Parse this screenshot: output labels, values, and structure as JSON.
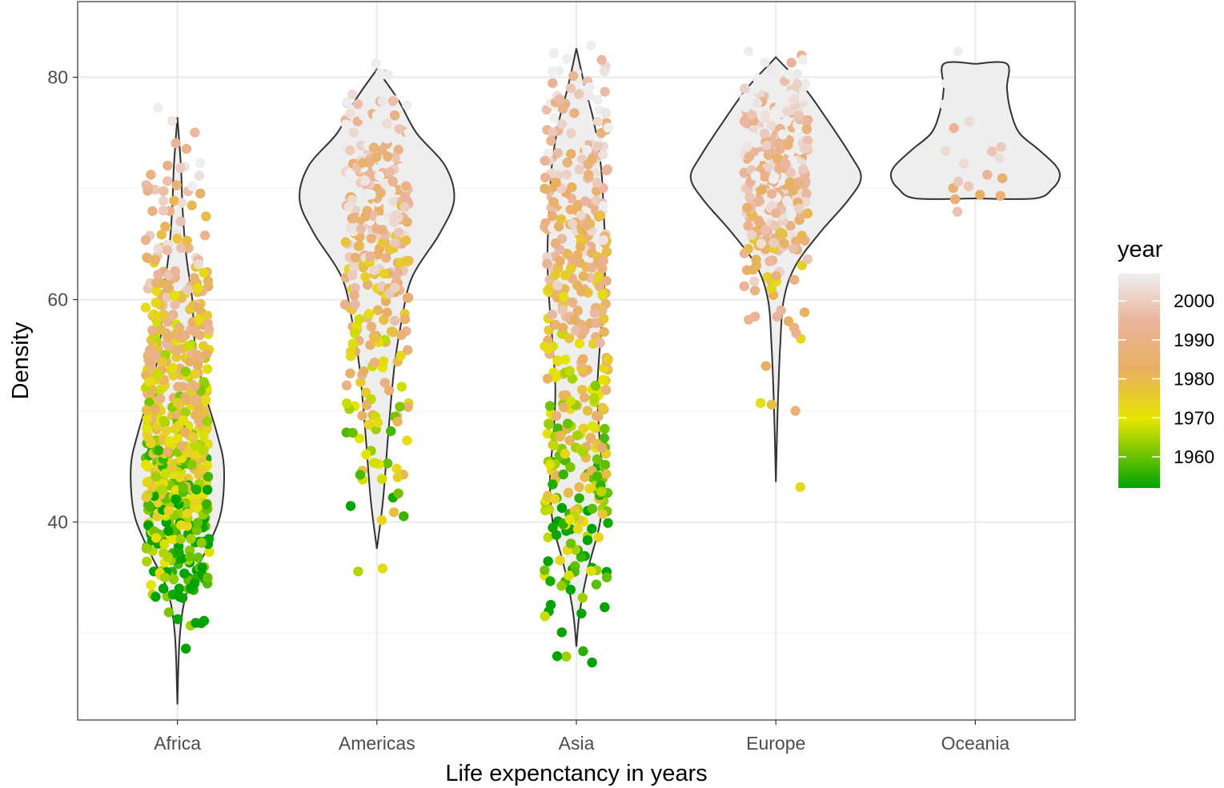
{
  "chart_data": {
    "type": "violin",
    "xlabel": "Life expenctancy in years",
    "ylabel": "Density",
    "categories": [
      "Africa",
      "Americas",
      "Asia",
      "Europe",
      "Oceania"
    ],
    "yticks": [
      40,
      60,
      80
    ],
    "ylim": [
      22.2,
      86.8
    ],
    "grid": true,
    "jitter_points": true,
    "legend": {
      "title": "year",
      "placement": "right",
      "labels": [
        2000,
        1990,
        1980,
        1970,
        1960
      ],
      "range": [
        1952,
        2007
      ],
      "colors": [
        "#00a300",
        "#e5e500",
        "#e8b060",
        "#eab49c",
        "#eeeeee"
      ]
    },
    "violins": [
      {
        "category": "Africa",
        "min": 23.6,
        "max": 76.4,
        "profile": [
          [
            23.6,
            0.0
          ],
          [
            30.0,
            0.03
          ],
          [
            34.0,
            0.12
          ],
          [
            38.0,
            0.36
          ],
          [
            41.0,
            0.5
          ],
          [
            45.0,
            0.53
          ],
          [
            48.0,
            0.45
          ],
          [
            52.0,
            0.3
          ],
          [
            56.0,
            0.2
          ],
          [
            60.0,
            0.17
          ],
          [
            64.0,
            0.1
          ],
          [
            68.0,
            0.06
          ],
          [
            72.0,
            0.04
          ],
          [
            76.4,
            0.0
          ]
        ]
      },
      {
        "category": "Americas",
        "min": 37.6,
        "max": 80.7,
        "profile": [
          [
            37.6,
            0.0
          ],
          [
            42.0,
            0.07
          ],
          [
            48.0,
            0.13
          ],
          [
            54.0,
            0.2
          ],
          [
            58.0,
            0.28
          ],
          [
            62.0,
            0.4
          ],
          [
            66.0,
            0.72
          ],
          [
            69.0,
            0.88
          ],
          [
            72.0,
            0.78
          ],
          [
            75.0,
            0.45
          ],
          [
            78.0,
            0.24
          ],
          [
            80.7,
            0.0
          ]
        ]
      },
      {
        "category": "Asia",
        "min": 28.8,
        "max": 82.6,
        "profile": [
          [
            28.8,
            0.0
          ],
          [
            32.0,
            0.04
          ],
          [
            36.0,
            0.14
          ],
          [
            40.0,
            0.27
          ],
          [
            44.0,
            0.3
          ],
          [
            48.0,
            0.26
          ],
          [
            52.0,
            0.24
          ],
          [
            56.0,
            0.27
          ],
          [
            60.0,
            0.31
          ],
          [
            64.0,
            0.33
          ],
          [
            68.0,
            0.31
          ],
          [
            72.0,
            0.28
          ],
          [
            76.0,
            0.2
          ],
          [
            79.0,
            0.1
          ],
          [
            82.6,
            0.0
          ]
        ]
      },
      {
        "category": "Europe",
        "min": 43.6,
        "max": 81.8,
        "profile": [
          [
            43.6,
            0.0
          ],
          [
            50.0,
            0.02
          ],
          [
            56.0,
            0.05
          ],
          [
            60.0,
            0.09
          ],
          [
            63.0,
            0.22
          ],
          [
            66.0,
            0.5
          ],
          [
            69.0,
            0.83
          ],
          [
            71.0,
            0.97
          ],
          [
            73.0,
            0.85
          ],
          [
            76.0,
            0.6
          ],
          [
            79.0,
            0.33
          ],
          [
            81.8,
            0.0
          ]
        ]
      },
      {
        "category": "Oceania",
        "min": 69.1,
        "max": 81.2,
        "profile": [
          [
            69.1,
            0.0
          ],
          [
            69.1,
            0.68
          ],
          [
            70.0,
            0.88
          ],
          [
            71.0,
            0.96
          ],
          [
            72.0,
            0.92
          ],
          [
            73.5,
            0.72
          ],
          [
            75.0,
            0.5
          ],
          [
            77.0,
            0.4
          ],
          [
            79.0,
            0.36
          ],
          [
            81.2,
            0.36
          ],
          [
            81.2,
            0.0
          ]
        ]
      }
    ],
    "point_density": [
      {
        "category": "Africa",
        "bands": [
          [
            24,
            0
          ],
          [
            28,
            1
          ],
          [
            32,
            14
          ],
          [
            36,
            48
          ],
          [
            40,
            90
          ],
          [
            44,
            96
          ],
          [
            48,
            90
          ],
          [
            52,
            80
          ],
          [
            56,
            64
          ],
          [
            60,
            52
          ],
          [
            64,
            30
          ],
          [
            68,
            16
          ],
          [
            72,
            12
          ],
          [
            76,
            4
          ]
        ]
      },
      {
        "category": "Americas",
        "bands": [
          [
            36,
            2
          ],
          [
            40,
            4
          ],
          [
            44,
            12
          ],
          [
            48,
            16
          ],
          [
            52,
            18
          ],
          [
            56,
            28
          ],
          [
            60,
            34
          ],
          [
            64,
            52
          ],
          [
            68,
            70
          ],
          [
            72,
            62
          ],
          [
            76,
            34
          ],
          [
            80,
            6
          ]
        ]
      },
      {
        "category": "Asia",
        "bands": [
          [
            28,
            4
          ],
          [
            32,
            8
          ],
          [
            36,
            22
          ],
          [
            40,
            36
          ],
          [
            44,
            44
          ],
          [
            48,
            40
          ],
          [
            52,
            38
          ],
          [
            56,
            36
          ],
          [
            60,
            42
          ],
          [
            64,
            48
          ],
          [
            68,
            48
          ],
          [
            72,
            42
          ],
          [
            76,
            28
          ],
          [
            80,
            16
          ],
          [
            82,
            4
          ]
        ]
      },
      {
        "category": "Europe",
        "bands": [
          [
            43,
            1
          ],
          [
            46,
            0
          ],
          [
            48,
            1
          ],
          [
            52,
            2
          ],
          [
            56,
            4
          ],
          [
            60,
            10
          ],
          [
            63,
            18
          ],
          [
            66,
            40
          ],
          [
            69,
            70
          ],
          [
            72,
            80
          ],
          [
            75,
            68
          ],
          [
            78,
            40
          ],
          [
            81,
            10
          ]
        ]
      },
      {
        "category": "Oceania",
        "bands": [
          [
            69,
            6
          ],
          [
            72,
            8
          ],
          [
            75,
            6
          ],
          [
            78,
            4
          ],
          [
            81,
            2
          ]
        ]
      }
    ]
  }
}
